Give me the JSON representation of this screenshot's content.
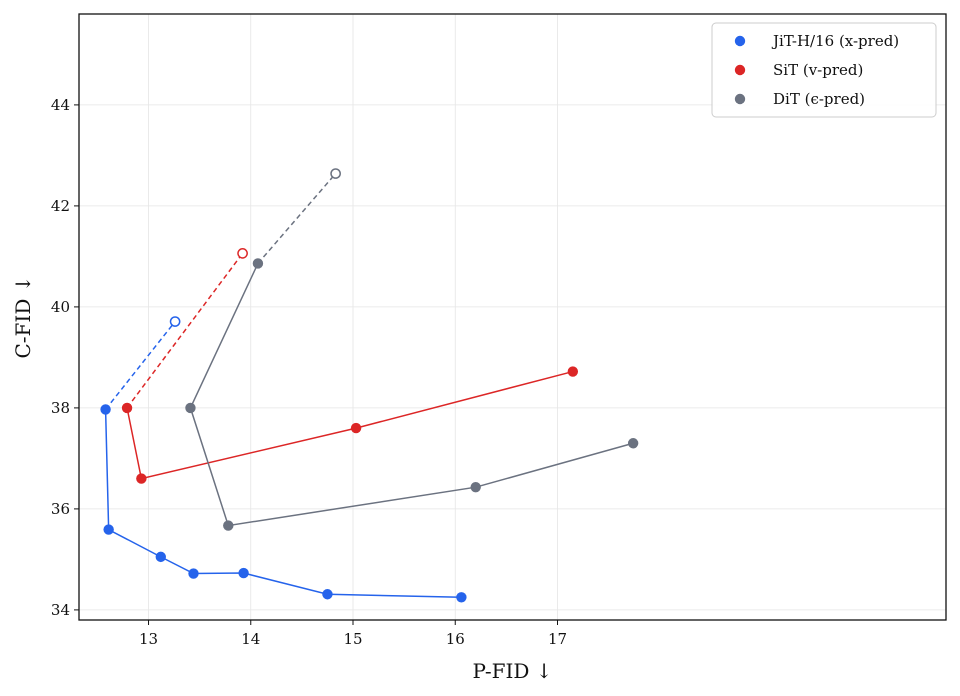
{
  "chart_data": {
    "type": "line",
    "xlabel": "P-FID ↓",
    "ylabel": "C-FID ↓",
    "xlim": [
      12.32,
      20.8
    ],
    "ylim": [
      33.8,
      45.8
    ],
    "xticks": [
      13,
      14,
      15,
      16,
      17
    ],
    "yticks": [
      34,
      36,
      38,
      40,
      42,
      44
    ],
    "grid": true,
    "legend_position": "top-right",
    "series": [
      {
        "name": "JiT-H/16 (x-pred)",
        "color": "#2563eb",
        "solid": {
          "x": [
            12.58,
            12.61,
            13.12,
            13.44,
            13.93,
            14.75,
            16.06
          ],
          "y": [
            37.97,
            35.59,
            35.05,
            34.72,
            34.73,
            34.31,
            34.25
          ]
        },
        "dashed": {
          "x": [
            12.58,
            13.26
          ],
          "y": [
            37.97,
            39.71
          ]
        },
        "open_marker": {
          "x": 13.26,
          "y": 39.71
        }
      },
      {
        "name": "SiT (v-pred)",
        "color": "#dc2626",
        "solid": {
          "x": [
            12.79,
            12.93,
            15.03,
            17.15
          ],
          "y": [
            38.0,
            36.6,
            37.6,
            38.72
          ]
        },
        "dashed": {
          "x": [
            12.79,
            13.92
          ],
          "y": [
            38.0,
            41.06
          ]
        },
        "open_marker": {
          "x": 13.92,
          "y": 41.06
        }
      },
      {
        "name": "DiT (ϵ-pred)",
        "color": "#6b7280",
        "solid": {
          "x": [
            14.07,
            13.41,
            13.78,
            16.2,
            17.74
          ],
          "y": [
            40.86,
            38.0,
            35.67,
            36.43,
            37.3
          ]
        },
        "dashed": {
          "x": [
            14.07,
            14.83
          ],
          "y": [
            40.86,
            42.64
          ]
        },
        "open_marker": {
          "x": 14.83,
          "y": 42.64
        }
      }
    ]
  }
}
